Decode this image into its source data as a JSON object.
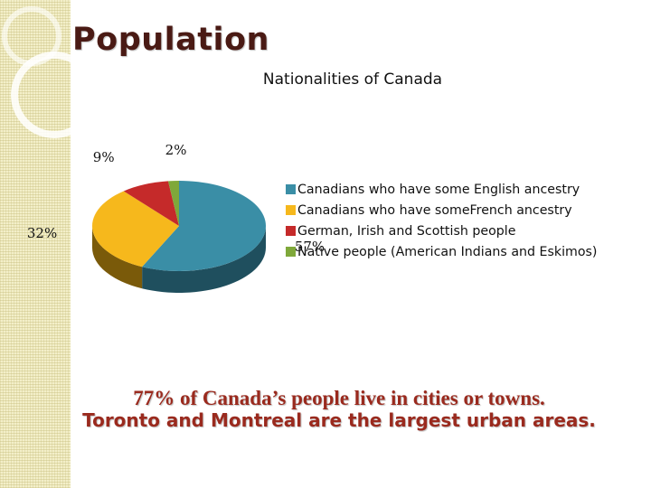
{
  "slide": {
    "title": "Population",
    "footer_line1": "77% of Canada’s people live in cities or towns.",
    "footer_line2": "Toronto and Montreal are the largest urban areas."
  },
  "chart_data": {
    "type": "pie",
    "title": "Nationalities of Canada",
    "three_d": true,
    "legend_position": "right",
    "series": [
      {
        "name": "Canadians who have some English ancestry",
        "value": 57,
        "label": "57%",
        "color": "#3a8ea6",
        "side_color": "#1f4f5e"
      },
      {
        "name": "Canadians who have someFrench ancestry",
        "value": 32,
        "label": "32%",
        "color": "#f6b81c",
        "side_color": "#7a5a0a"
      },
      {
        "name": "German, Irish and Scottish people",
        "value": 9,
        "label": "9%",
        "color": "#c52a2a",
        "side_color": "#6a1414"
      },
      {
        "name": "Native people (American Indians and Eskimos)",
        "value": 2,
        "label": "2%",
        "color": "#7fa83a",
        "side_color": "#3f5a1a"
      }
    ]
  }
}
